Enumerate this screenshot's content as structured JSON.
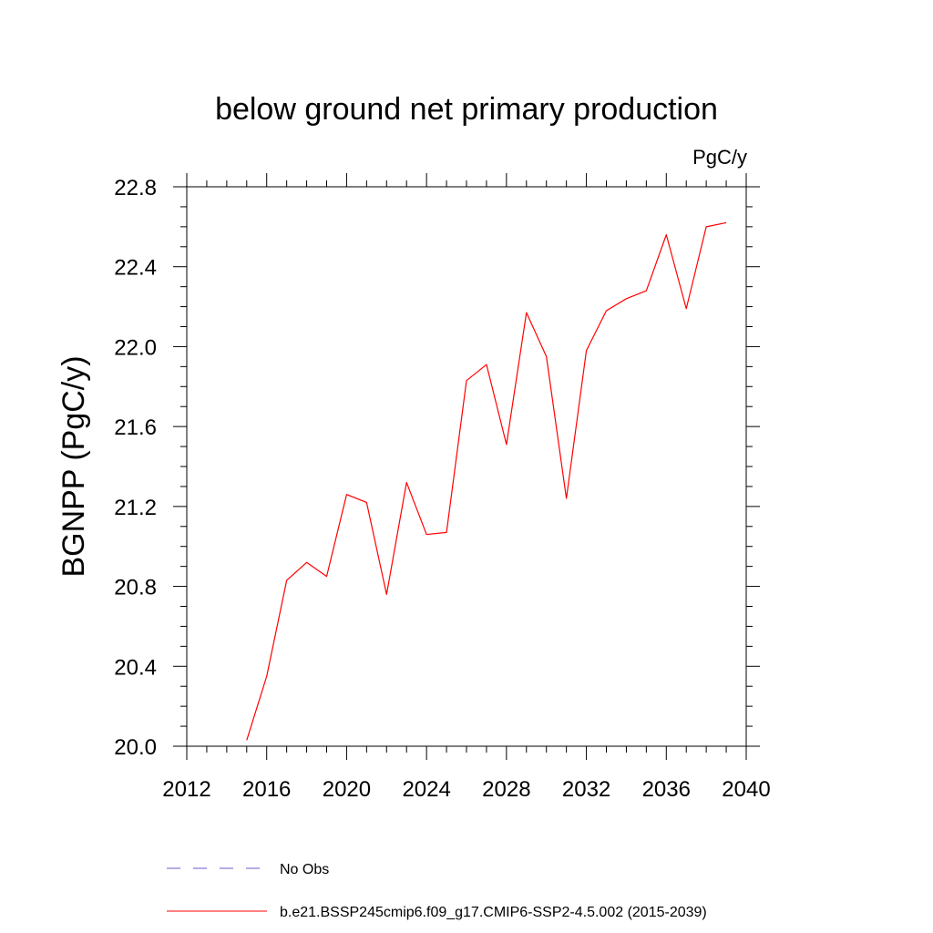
{
  "chart_data": {
    "type": "line",
    "title": "below ground net primary production",
    "units_label": "PgC/y",
    "ylabel": "BGNPP  (PgC/y)",
    "xlabel": "",
    "xlim": [
      2012,
      2040
    ],
    "ylim": [
      20.0,
      22.8
    ],
    "x_ticks": [
      2012,
      2016,
      2020,
      2024,
      2028,
      2032,
      2036,
      2040
    ],
    "y_ticks": [
      20.0,
      20.4,
      20.8,
      21.2,
      21.6,
      22.0,
      22.4,
      22.8
    ],
    "y_tick_labels": [
      "20.0",
      "20.4",
      "20.8",
      "21.2",
      "21.6",
      "22.0",
      "22.4",
      "22.8"
    ],
    "x_minor_step": 1,
    "y_minor_step": 0.1,
    "grid": false,
    "legend_position": "bottom",
    "x": [
      2015,
      2016,
      2017,
      2018,
      2019,
      2020,
      2021,
      2022,
      2023,
      2024,
      2025,
      2026,
      2027,
      2028,
      2029,
      2030,
      2031,
      2032,
      2033,
      2034,
      2035,
      2036,
      2037,
      2038,
      2039
    ],
    "series": [
      {
        "name": "b.e21.BSSP245cmip6.f09_g17.CMIP6-SSP2-4.5.002 (2015-2039)",
        "color": "#ff0000",
        "dash": "solid",
        "values": [
          20.03,
          20.35,
          20.83,
          20.92,
          20.85,
          21.26,
          21.22,
          20.76,
          21.32,
          21.06,
          21.07,
          21.83,
          21.91,
          21.51,
          22.17,
          21.95,
          21.24,
          21.98,
          22.18,
          22.24,
          22.28,
          22.56,
          22.19,
          22.6,
          22.62
        ]
      }
    ],
    "legend": [
      {
        "label": "No Obs",
        "color": "#6a5acd",
        "dash": "dashed"
      },
      {
        "label": "b.e21.BSSP245cmip6.f09_g17.CMIP6-SSP2-4.5.002 (2015-2039)",
        "color": "#ff0000",
        "dash": "solid"
      }
    ]
  }
}
